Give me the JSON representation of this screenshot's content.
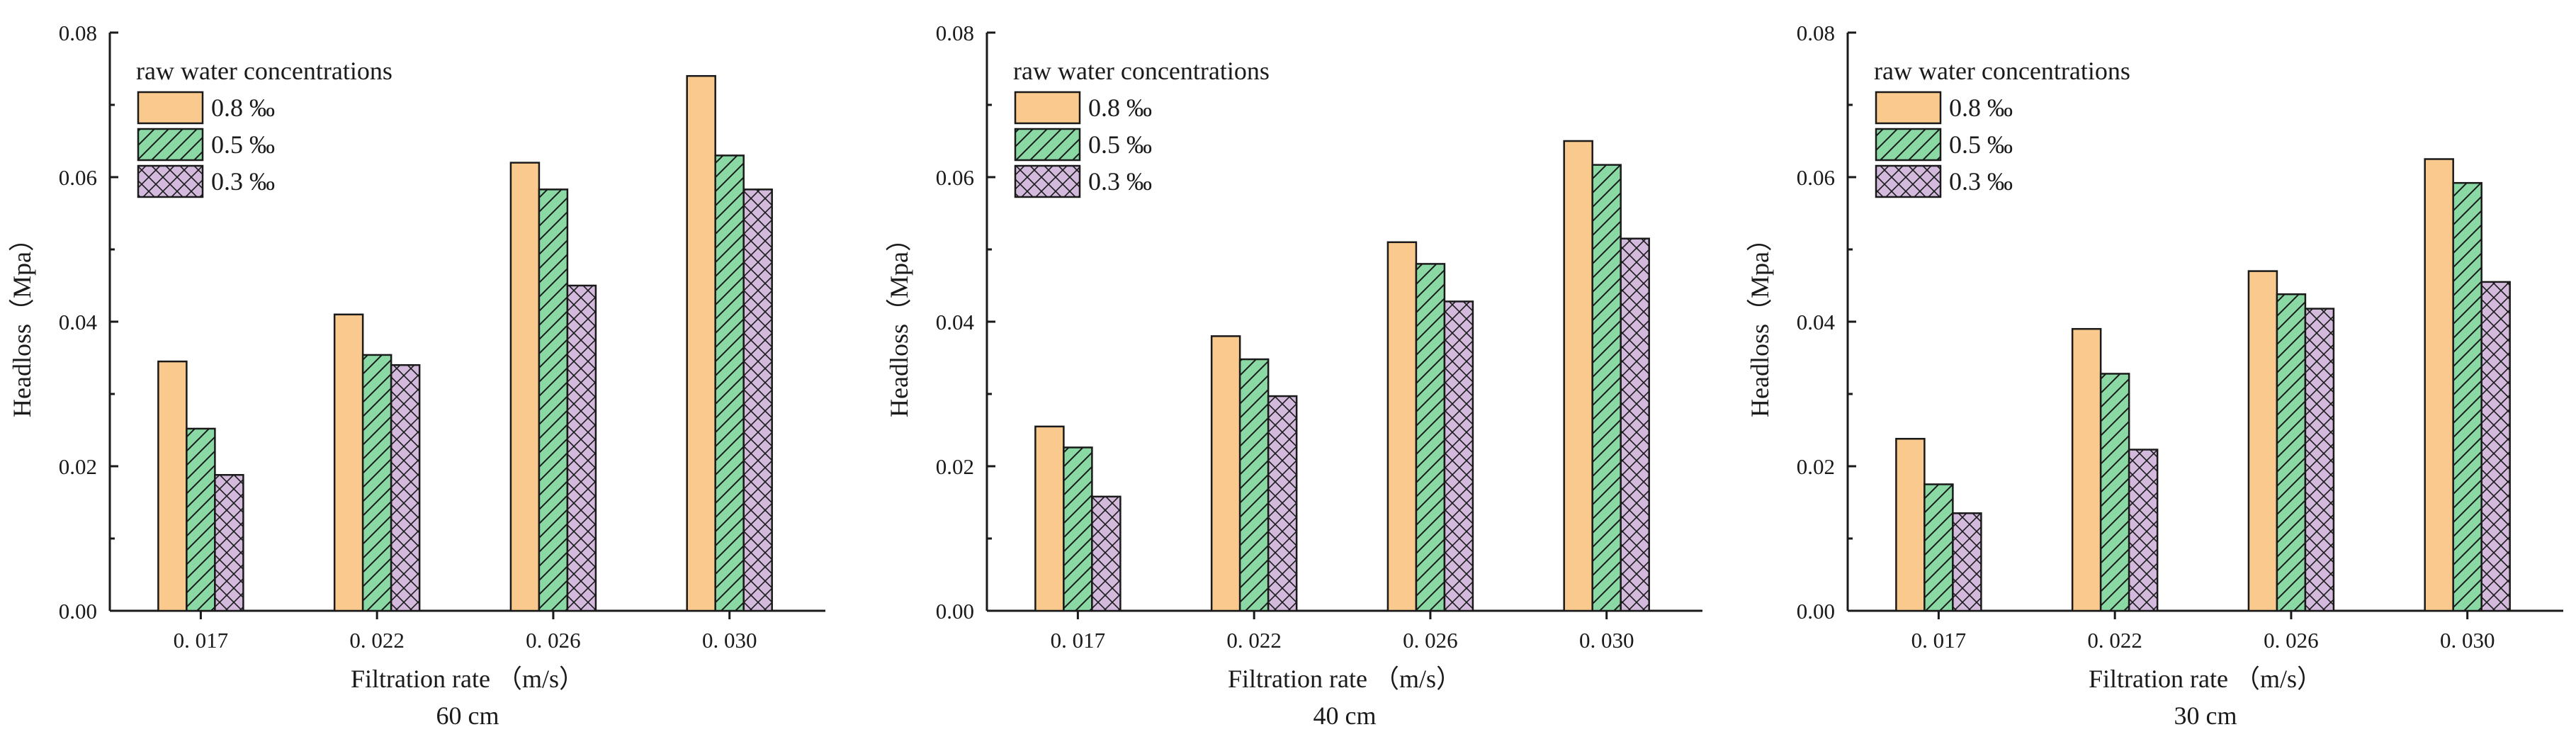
{
  "chart_data": [
    {
      "type": "bar",
      "title": "60 cm",
      "xlabel": "Filtration rate （m/s）",
      "ylabel": "Headloss（Mpa）",
      "ylim": [
        0,
        0.08
      ],
      "yticks": [
        "0.00",
        "0.02",
        "0.04",
        "0.06",
        "0.08"
      ],
      "categories": [
        "0. 017",
        "0. 022",
        "0. 026",
        "0. 030"
      ],
      "legend_title": "raw water concentrations",
      "legend_position": "top-left",
      "series": [
        {
          "name": "0.8 ‰",
          "values": [
            0.0345,
            0.041,
            0.062,
            0.074
          ]
        },
        {
          "name": "0.5 ‰",
          "values": [
            0.0252,
            0.0354,
            0.0583,
            0.063
          ]
        },
        {
          "name": "0.3 ‰",
          "values": [
            0.0188,
            0.034,
            0.045,
            0.0583
          ]
        }
      ]
    },
    {
      "type": "bar",
      "title": "40 cm",
      "xlabel": "Filtration rate （m/s）",
      "ylabel": "Headloss（Mpa）",
      "ylim": [
        0,
        0.08
      ],
      "yticks": [
        "0.00",
        "0.02",
        "0.04",
        "0.06",
        "0.08"
      ],
      "categories": [
        "0. 017",
        "0. 022",
        "0. 026",
        "0. 030"
      ],
      "legend_title": "raw water concentrations",
      "legend_position": "top-left",
      "series": [
        {
          "name": "0.8 ‰",
          "values": [
            0.0255,
            0.038,
            0.051,
            0.065
          ]
        },
        {
          "name": "0.5 ‰",
          "values": [
            0.0226,
            0.0348,
            0.048,
            0.0617
          ]
        },
        {
          "name": "0.3 ‰",
          "values": [
            0.0158,
            0.0297,
            0.0428,
            0.0515
          ]
        }
      ]
    },
    {
      "type": "bar",
      "title": "30 cm",
      "xlabel": "Filtration rate （m/s）",
      "ylabel": "Headloss（Mpa）",
      "ylim": [
        0,
        0.08
      ],
      "yticks": [
        "0.00",
        "0.02",
        "0.04",
        "0.06",
        "0.08"
      ],
      "categories": [
        "0. 017",
        "0. 022",
        "0. 026",
        "0. 030"
      ],
      "legend_title": "raw water concentrations",
      "legend_position": "top-left",
      "series": [
        {
          "name": "0.8 ‰",
          "values": [
            0.0238,
            0.039,
            0.047,
            0.0625
          ]
        },
        {
          "name": "0.5 ‰",
          "values": [
            0.0175,
            0.0328,
            0.0438,
            0.0592
          ]
        },
        {
          "name": "0.3 ‰",
          "values": [
            0.0135,
            0.0223,
            0.0418,
            0.0455
          ]
        }
      ]
    }
  ],
  "colors": {
    "series_fill": [
      "#fac98d",
      "#8ad9a4",
      "#d3badd"
    ],
    "outline": "#1a1a1a"
  }
}
